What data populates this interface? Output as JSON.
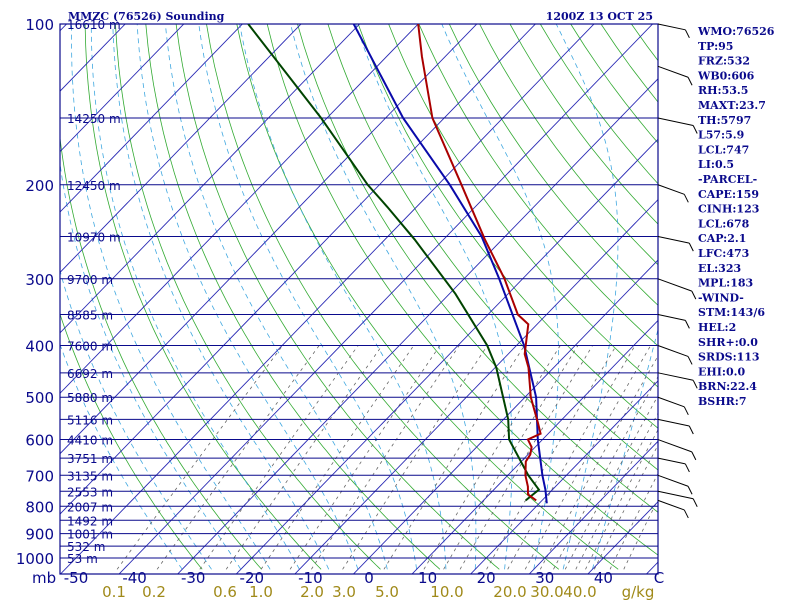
{
  "header": {
    "station": "MMZC (76526) Sounding",
    "time": "1200Z 13 OCT 25"
  },
  "indices": [
    "WMO:76526",
    "TP:95",
    "FRZ:532",
    "WB0:606",
    "RH:53.5",
    "MAXT:23.7",
    "TH:5797",
    "L57:5.9",
    "LCL:747",
    "LI:0.5",
    "-PARCEL-",
    "CAPE:159",
    "CINH:123",
    "LCL:678",
    "CAP:2.1",
    "LFC:473",
    "EL:323",
    "MPL:183",
    "-WIND-",
    "STM:143/6",
    "HEL:2",
    "SHR+:0.0",
    "SRDS:113",
    "EHI:0.0",
    "BRN:22.4",
    "BSHR:7"
  ],
  "chart_data": {
    "type": "line",
    "title": "MMZC (76526) Sounding",
    "subtitle": "1200Z 13 OCT 25",
    "xlabel": "C",
    "mixing_ratio_unit": "g/kg",
    "pressure_unit": "mb",
    "y_scale": "log",
    "ylim_mb": [
      1000,
      100
    ],
    "xlim_c": [
      -50,
      50
    ],
    "pressure_ticks": [
      100,
      200,
      300,
      400,
      500,
      600,
      700,
      800,
      900,
      1000
    ],
    "temperature_ticks": [
      "-50",
      "-40",
      "-30",
      "-20",
      "-10",
      "0",
      "10",
      "20",
      "30",
      "40"
    ],
    "mixing_ratio_ticks": [
      "0.1",
      "0.2",
      "0.6",
      "1.0",
      "2.0",
      "3.0",
      "5.0",
      "10.0",
      "20.0",
      "30.0",
      "40.0"
    ],
    "height_labels": [
      {
        "p": 100,
        "label": "16610 m"
      },
      {
        "p": 150,
        "label": "14250 m"
      },
      {
        "p": 200,
        "label": "12450 m"
      },
      {
        "p": 250,
        "label": "10970 m"
      },
      {
        "p": 300,
        "label": "9700 m"
      },
      {
        "p": 350,
        "label": "8585 m"
      },
      {
        "p": 400,
        "label": "7600 m"
      },
      {
        "p": 450,
        "label": "6692 m"
      },
      {
        "p": 500,
        "label": "5880 m"
      },
      {
        "p": 550,
        "label": "5116 m"
      },
      {
        "p": 600,
        "label": "4410 m"
      },
      {
        "p": 650,
        "label": "3751 m"
      },
      {
        "p": 700,
        "label": "3135 m"
      },
      {
        "p": 750,
        "label": "2553 m"
      },
      {
        "p": 800,
        "label": "2007 m"
      },
      {
        "p": 850,
        "label": "1492 m"
      },
      {
        "p": 900,
        "label": "1001 m"
      },
      {
        "p": 950,
        "label": "532 m"
      },
      {
        "p": 1000,
        "label": "53 m"
      }
    ],
    "series": [
      {
        "points": [
          {
            "p": 780,
            "t": 19
          },
          {
            "p": 760,
            "t": 16.6
          },
          {
            "p": 735,
            "t": 15.3
          },
          {
            "p": 700,
            "t": 13
          },
          {
            "p": 660,
            "t": 10.8
          },
          {
            "p": 640,
            "t": 10.4
          },
          {
            "p": 620,
            "t": 9.4
          },
          {
            "p": 600,
            "t": 7.5
          },
          {
            "p": 585,
            "t": 8.7
          },
          {
            "p": 560,
            "t": 6.6
          },
          {
            "p": 500,
            "t": 1
          },
          {
            "p": 440,
            "t": -4.3
          },
          {
            "p": 415,
            "t": -7.2
          },
          {
            "p": 365,
            "t": -11.5
          },
          {
            "p": 350,
            "t": -14.9
          },
          {
            "p": 300,
            "t": -23.1
          },
          {
            "p": 253,
            "t": -33
          },
          {
            "p": 200,
            "t": -46
          },
          {
            "p": 150,
            "t": -62
          },
          {
            "p": 115,
            "t": -74
          },
          {
            "p": 100,
            "t": -80
          }
        ]
      },
      {
        "points": [
          {
            "p": 780,
            "t": 17.2
          },
          {
            "p": 745,
            "t": 17.7
          },
          {
            "p": 700,
            "t": 13.5
          },
          {
            "p": 600,
            "t": 4.3
          },
          {
            "p": 550,
            "t": 0.8
          },
          {
            "p": 440,
            "t": -9.8
          },
          {
            "p": 400,
            "t": -15
          },
          {
            "p": 320,
            "t": -29
          },
          {
            "p": 253,
            "t": -45
          },
          {
            "p": 220,
            "t": -55
          },
          {
            "p": 200,
            "t": -62
          },
          {
            "p": 150,
            "t": -81
          },
          {
            "p": 100,
            "t": -109
          }
        ]
      },
      {
        "points": [
          {
            "p": 790,
            "t": 21.3
          },
          {
            "p": 745,
            "t": 18.8
          },
          {
            "p": 700,
            "t": 15.9
          },
          {
            "p": 600,
            "t": 9.2
          },
          {
            "p": 500,
            "t": 1.9
          },
          {
            "p": 400,
            "t": -8.7
          },
          {
            "p": 300,
            "t": -24
          },
          {
            "p": 250,
            "t": -34
          },
          {
            "p": 200,
            "t": -48
          },
          {
            "p": 150,
            "t": -67
          },
          {
            "p": 100,
            "t": -91
          }
        ]
      }
    ],
    "wind_levels_mb": [
      100,
      120,
      150,
      200,
      250,
      300,
      350,
      400,
      450,
      500,
      550,
      600,
      650,
      700,
      750,
      780
    ],
    "colors": {
      "frame": "#0a0a8c",
      "isobars": "#0a0a8c",
      "isotherms": "#2a2ab4",
      "dry_adiabats": "#33aa33",
      "moist_adiabats": "#40a8e0",
      "mixing_ratio": "#666666",
      "temperature": "#aa0000",
      "dewpoint": "#004400",
      "parcel": "#0a0aaa",
      "mixing_ratio_text": "#a08a1a"
    }
  }
}
